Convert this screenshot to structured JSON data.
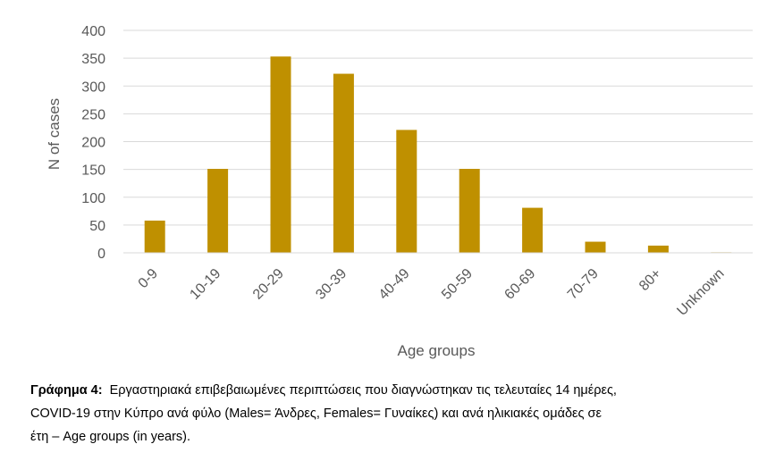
{
  "chart_data": {
    "type": "bar",
    "categories": [
      "0-9",
      "10-19",
      "20-29",
      "30-39",
      "40-49",
      "50-59",
      "60-69",
      "70-79",
      "80+",
      "Unknown"
    ],
    "values": [
      58,
      151,
      353,
      322,
      221,
      151,
      81,
      20,
      13,
      1
    ],
    "xlabel": "Age groups",
    "ylabel": "N of cases",
    "ylim": [
      0,
      400
    ],
    "yticks": [
      "0",
      "50",
      "100",
      "150",
      "200",
      "250",
      "300",
      "350",
      "400"
    ],
    "bar_color": "#BF9000",
    "grid": true,
    "grid_color": "#D9D9D9",
    "legend": "none"
  },
  "caption": {
    "label": "Γράφημα 4:",
    "line1": "Εργαστηριακά επιβεβαιωμένες περιπτώσεις που διαγνώστηκαν τις τελευταίες 14 ημέρες,",
    "line2": "COVID-19 στην Κύπρο ανά φύλο (Males=  Άνδρες, Females= Γυναίκες) και ανά ηλικιακές ομάδες σε",
    "line3": "έτη – Age groups (in years)."
  }
}
